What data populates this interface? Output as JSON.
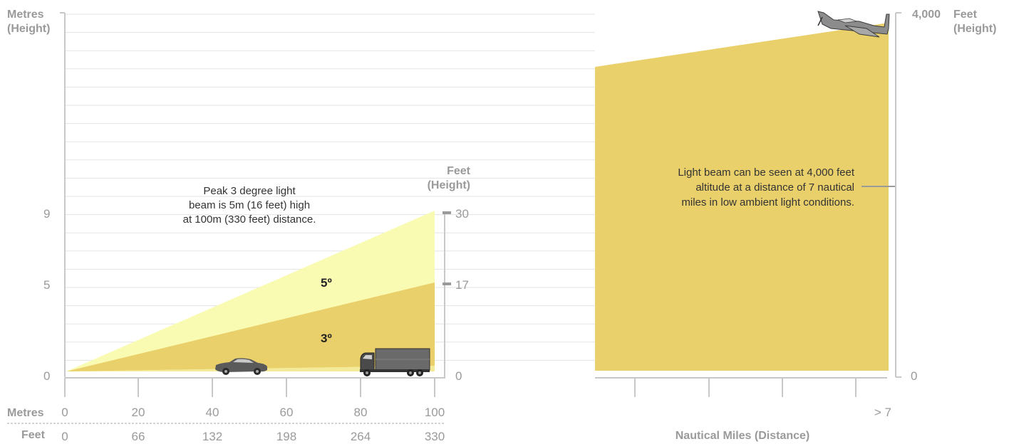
{
  "left_panel": {
    "y_left_title": [
      "Metres",
      "(Height)"
    ],
    "y_right_title": [
      "Feet",
      "(Height)"
    ],
    "y_left_ticks": [
      "9",
      "5",
      "0"
    ],
    "y_right_ticks": [
      "30",
      "17",
      "0"
    ],
    "x_metres_label": "Metres",
    "x_feet_label": "Feet",
    "x_metres_ticks": [
      "0",
      "20",
      "40",
      "60",
      "80",
      "100"
    ],
    "x_feet_ticks": [
      "0",
      "66",
      "132",
      "198",
      "264",
      "330"
    ],
    "beam_labels": [
      "5º",
      "3º"
    ],
    "note": [
      "Peak 3 degree light",
      "beam is 5m (16 feet) high",
      "at 100m (330 feet) distance."
    ]
  },
  "right_panel": {
    "y_top_value": "4,000",
    "y_title": [
      "Feet",
      "(Height)"
    ],
    "y_bottom_value": "0",
    "x_end_label": "> 7",
    "x_title": "Nautical Miles (Distance)",
    "note": [
      "Light beam can be seen at 4,000 feet",
      "altitude at a distance of 7 nautical",
      "miles in low ambient light conditions."
    ]
  },
  "colors": {
    "beam_5deg": "#fafbb3",
    "beam_3deg": "#e9d06b",
    "right_beam": "#e9d06b",
    "axis": "#c8c8c8",
    "text_muted": "#9a9a9a"
  },
  "icons": [
    "car-icon",
    "truck-icon",
    "airplane-icon"
  ]
}
